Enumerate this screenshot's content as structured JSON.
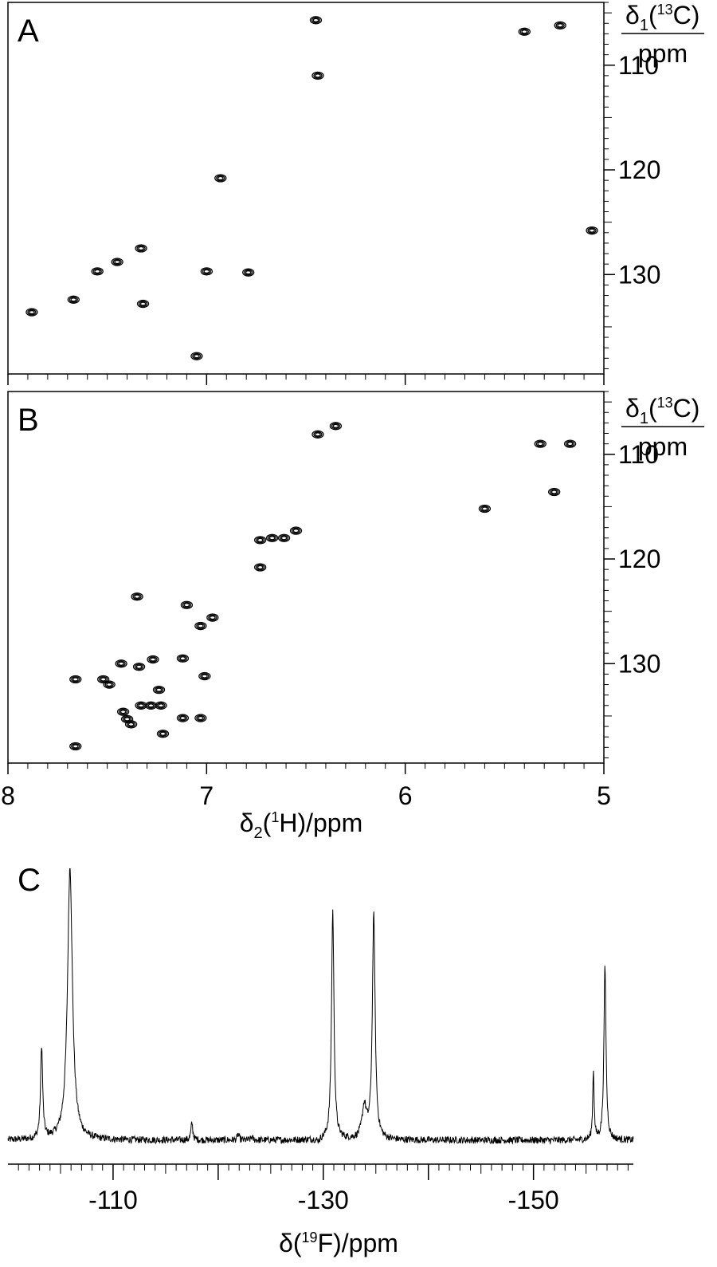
{
  "chart_data": [
    {
      "panel": "A",
      "type": "scatter",
      "subtype": "2D NMR contour plot (1H-13C correlation)",
      "xlabel": "δ2(1H)/ppm",
      "ylabel": "δ1(13C) ppm",
      "xlim": [
        8,
        5
      ],
      "ylim": [
        104,
        139.5
      ],
      "x_reversed": true,
      "y_reversed": true,
      "xticks": [
        8,
        7,
        6,
        5
      ],
      "yticks": [
        110,
        120,
        130
      ],
      "ytick_labels": [
        "110",
        "120",
        "130"
      ],
      "xtick_labels_shown": false,
      "points": [
        {
          "x": 6.45,
          "y": 105.7
        },
        {
          "x": 6.44,
          "y": 111.0
        },
        {
          "x": 5.4,
          "y": 106.8
        },
        {
          "x": 5.22,
          "y": 106.2
        },
        {
          "x": 6.93,
          "y": 120.8
        },
        {
          "x": 5.06,
          "y": 125.8
        },
        {
          "x": 7.33,
          "y": 127.5
        },
        {
          "x": 7.45,
          "y": 128.8
        },
        {
          "x": 7.55,
          "y": 129.7
        },
        {
          "x": 7.0,
          "y": 129.7
        },
        {
          "x": 6.79,
          "y": 129.8
        },
        {
          "x": 7.67,
          "y": 132.4
        },
        {
          "x": 7.32,
          "y": 132.8
        },
        {
          "x": 7.88,
          "y": 133.6
        },
        {
          "x": 7.05,
          "y": 137.8
        }
      ]
    },
    {
      "panel": "B",
      "type": "scatter",
      "subtype": "2D NMR contour plot (1H-13C correlation)",
      "xlabel": "δ2(1H)/ppm",
      "ylabel": "δ1(13C) ppm",
      "xlim": [
        8,
        5
      ],
      "ylim": [
        104,
        139.5
      ],
      "x_reversed": true,
      "y_reversed": true,
      "xticks": [
        8,
        7,
        6,
        5
      ],
      "xtick_labels": [
        "8",
        "7",
        "6",
        "5"
      ],
      "yticks": [
        110,
        120,
        130
      ],
      "ytick_labels": [
        "110",
        "120",
        "130"
      ],
      "points": [
        {
          "x": 6.44,
          "y": 108.1
        },
        {
          "x": 6.35,
          "y": 107.3
        },
        {
          "x": 5.32,
          "y": 109.0
        },
        {
          "x": 5.17,
          "y": 109.0
        },
        {
          "x": 5.25,
          "y": 113.6
        },
        {
          "x": 5.6,
          "y": 115.2
        },
        {
          "x": 6.55,
          "y": 117.3
        },
        {
          "x": 6.61,
          "y": 118.0
        },
        {
          "x": 6.67,
          "y": 118.0
        },
        {
          "x": 6.73,
          "y": 118.2
        },
        {
          "x": 6.73,
          "y": 120.8
        },
        {
          "x": 7.35,
          "y": 123.6
        },
        {
          "x": 7.1,
          "y": 124.4
        },
        {
          "x": 6.97,
          "y": 125.6
        },
        {
          "x": 7.03,
          "y": 126.4
        },
        {
          "x": 7.12,
          "y": 129.5
        },
        {
          "x": 7.27,
          "y": 129.6
        },
        {
          "x": 7.43,
          "y": 130.0
        },
        {
          "x": 7.34,
          "y": 130.3
        },
        {
          "x": 7.01,
          "y": 131.2
        },
        {
          "x": 7.66,
          "y": 131.5
        },
        {
          "x": 7.52,
          "y": 131.5
        },
        {
          "x": 7.49,
          "y": 132.0
        },
        {
          "x": 7.24,
          "y": 132.5
        },
        {
          "x": 7.33,
          "y": 134.0
        },
        {
          "x": 7.28,
          "y": 134.0
        },
        {
          "x": 7.23,
          "y": 134.0
        },
        {
          "x": 7.42,
          "y": 134.6
        },
        {
          "x": 7.4,
          "y": 135.3
        },
        {
          "x": 7.38,
          "y": 135.8
        },
        {
          "x": 7.12,
          "y": 135.2
        },
        {
          "x": 7.03,
          "y": 135.2
        },
        {
          "x": 7.22,
          "y": 136.7
        },
        {
          "x": 7.66,
          "y": 137.9
        }
      ]
    },
    {
      "panel": "C",
      "type": "line",
      "subtype": "1D 19F NMR spectrum",
      "xlabel": "δ(19F)/ppm",
      "ylabel": "",
      "xlim": [
        -100,
        -159.5
      ],
      "x_reversed": true,
      "xticks": [
        -110,
        -130,
        -150
      ],
      "xtick_labels": [
        "-110",
        "-130",
        "-150"
      ],
      "ylim": [
        0,
        1
      ],
      "baseline": 0.06,
      "noise_amplitude": 0.012,
      "peaks": [
        {
          "x": -103.2,
          "height": 0.38,
          "width": 0.12
        },
        {
          "x": -105.9,
          "height": 1.0,
          "width": 0.28
        },
        {
          "x": -117.5,
          "height": 0.12,
          "width": 0.1
        },
        {
          "x": -121.9,
          "height": 0.08,
          "width": 0.1
        },
        {
          "x": -123.2,
          "height": 0.07,
          "width": 0.1
        },
        {
          "x": -129.5,
          "height": 0.05,
          "width": 0.2
        },
        {
          "x": -130.9,
          "height": 0.85,
          "width": 0.14
        },
        {
          "x": -133.9,
          "height": 0.17,
          "width": 0.25
        },
        {
          "x": -134.8,
          "height": 0.83,
          "width": 0.16
        },
        {
          "x": -155.7,
          "height": 0.3,
          "width": 0.08
        },
        {
          "x": -156.8,
          "height": 0.66,
          "width": 0.12
        }
      ]
    }
  ],
  "panels": {
    "A": {
      "label": "A",
      "yaxis_label_delta": "δ",
      "yaxis_label_sub": "1",
      "yaxis_label_nucleus_mass": "13",
      "yaxis_label_nucleus": "C",
      "yaxis_label_unit": "ppm"
    },
    "B": {
      "label": "B",
      "yaxis_label_delta": "δ",
      "yaxis_label_sub": "1",
      "yaxis_label_nucleus_mass": "13",
      "yaxis_label_nucleus": "C",
      "yaxis_label_unit": "ppm"
    },
    "C": {
      "label": "C"
    }
  },
  "xaxis_2d": {
    "delta": "δ",
    "sub": "2",
    "mass": "1",
    "nucleus": "H",
    "unit": "/ppm"
  },
  "xaxis_1d": {
    "prefix": "δ(",
    "mass": "19",
    "suffix": "F)/ppm"
  }
}
